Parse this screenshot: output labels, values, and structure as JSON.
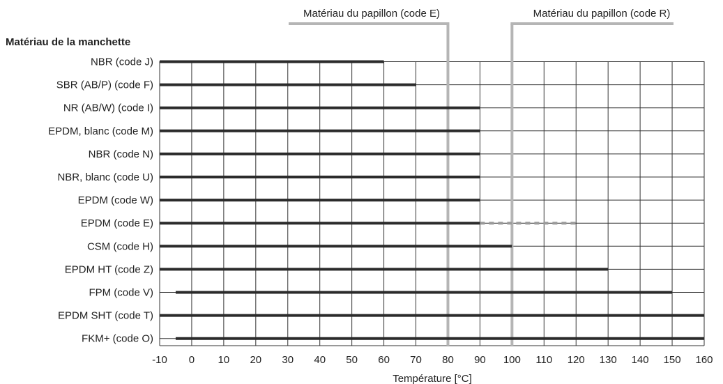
{
  "chart_data": {
    "type": "bar",
    "orientation": "horizontal",
    "row_axis_title": "Matériau de la manchette",
    "xlabel": "Température [°C]",
    "xlim": [
      -10,
      160
    ],
    "xticks": [
      -10,
      0,
      10,
      20,
      30,
      40,
      50,
      60,
      70,
      80,
      90,
      100,
      110,
      120,
      130,
      140,
      150,
      160
    ],
    "grid": true,
    "rows": [
      {
        "label": "NBR (code J)",
        "start": -10,
        "end": 60
      },
      {
        "label": "SBR (AB/P) (code F)",
        "start": -10,
        "end": 70
      },
      {
        "label": "NR (AB/W) (code I)",
        "start": -10,
        "end": 90
      },
      {
        "label": "EPDM, blanc (code M)",
        "start": -10,
        "end": 90
      },
      {
        "label": "NBR (code N)",
        "start": -10,
        "end": 90
      },
      {
        "label": "NBR, blanc (code U)",
        "start": -10,
        "end": 90
      },
      {
        "label": "EPDM (code W)",
        "start": -10,
        "end": 90
      },
      {
        "label": "EPDM (code E)",
        "start": -10,
        "end": 90,
        "dashed_end": 120
      },
      {
        "label": "CSM (code H)",
        "start": -10,
        "end": 100
      },
      {
        "label": "EPDM HT (code Z)",
        "start": -10,
        "end": 130
      },
      {
        "label": "FPM (code V)",
        "start": -5,
        "end": 150
      },
      {
        "label": "EPDM SHT (code T)",
        "start": -10,
        "end": 160
      },
      {
        "label": "FKM+ (code O)",
        "start": -5,
        "end": 160
      }
    ],
    "reference_lines": [
      {
        "label": "Matériau du papillon (code E)",
        "x": 80
      },
      {
        "label": "Matériau du papillon (code R)",
        "x": 100
      }
    ],
    "colors": {
      "bar": "#2b2b2b",
      "dashed": "#9a9a9a",
      "grid": "#333333",
      "reference": "#b5b5b5"
    }
  }
}
